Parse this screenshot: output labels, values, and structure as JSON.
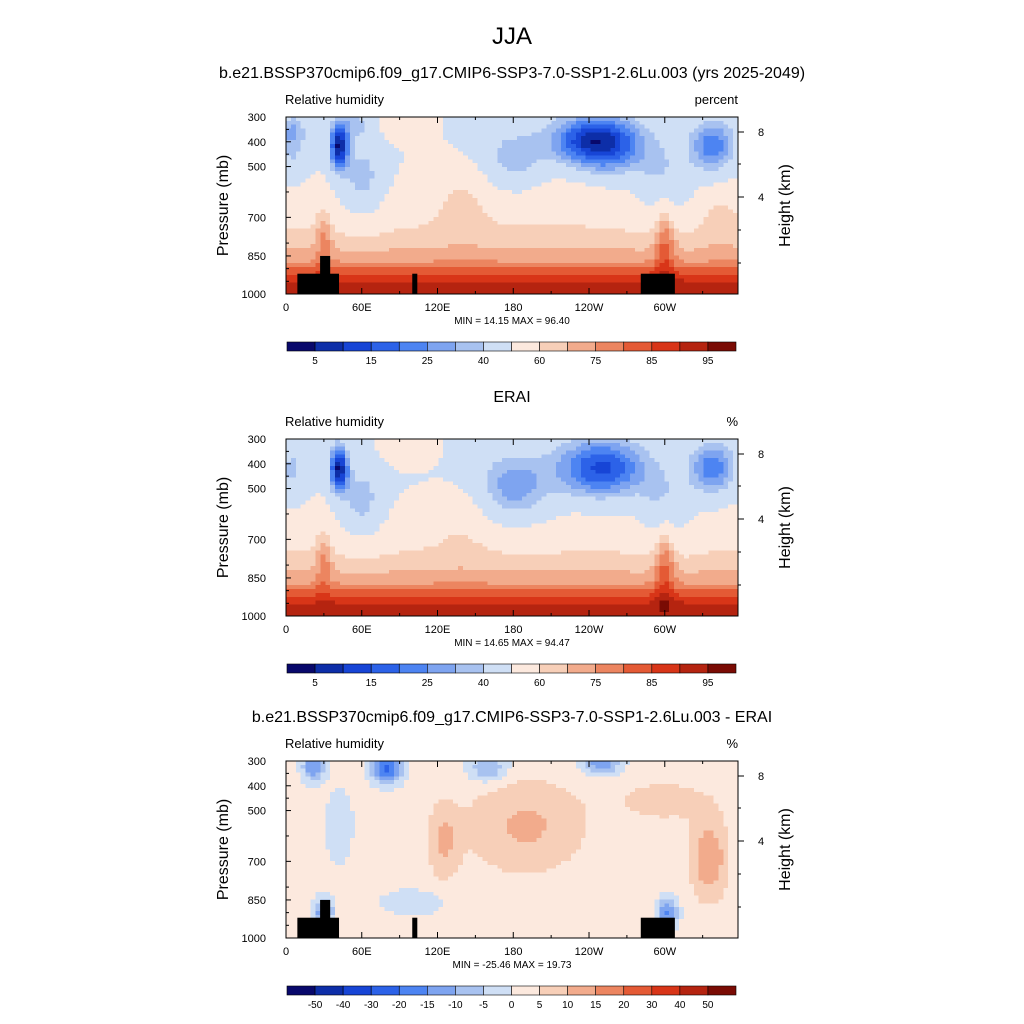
{
  "figure": {
    "title": "JJA"
  },
  "colors": {
    "abs_levels": [
      "#08086b",
      "#0d2ea8",
      "#1745d6",
      "#2c62e8",
      "#4d84f2",
      "#7ea4f0",
      "#a8c2f0",
      "#cfdff5",
      "#fce9de",
      "#f7cfb8",
      "#f2ab8c",
      "#ec8560",
      "#e45a35",
      "#d83518",
      "#b52410",
      "#7a0b04"
    ],
    "diff_levels": [
      "#08086b",
      "#0d2ea8",
      "#1745d6",
      "#2c62e8",
      "#4d84f2",
      "#7ea4f0",
      "#a8c2f0",
      "#cfdff5",
      "#fce9de",
      "#f7cfb8",
      "#f2ab8c",
      "#ec8560",
      "#e45a35",
      "#d83518",
      "#b52410",
      "#7a0b04"
    ],
    "topography": "#000000"
  },
  "chart_data": [
    {
      "type": "heatmap",
      "title": "b.e21.BSSP370cmip6.f09_g17.CMIP6-SSP3-7.0-SSP1-2.6Lu.003 (yrs 2025-2049)",
      "left_label": "Relative humidity",
      "right_label": "percent",
      "field": "model",
      "ylabel": "Pressure (mb)",
      "y2label": "Height (km)",
      "yticks": [
        "300",
        "400",
        "500",
        "700",
        "850",
        "1000"
      ],
      "y2ticks": [
        "8",
        "4"
      ],
      "xticks": [
        "0",
        "60E",
        "120E",
        "180",
        "120W",
        "60W"
      ],
      "xlim": [
        0,
        358
      ],
      "ylim": [
        1000,
        300
      ],
      "stats": "MIN =  14.15  MAX =  96.40",
      "colorbar_labels": [
        "5",
        "15",
        "25",
        "40",
        "60",
        "75",
        "85",
        "95"
      ],
      "levels": [
        5,
        10,
        15,
        20,
        25,
        30,
        35,
        40,
        50,
        60,
        65,
        70,
        75,
        80,
        85,
        90,
        95
      ],
      "value_range": [
        14.15,
        96.4
      ],
      "topography": true
    },
    {
      "type": "heatmap",
      "title": "ERAI",
      "left_label": "Relative humidity",
      "right_label": "%",
      "field": "obs",
      "ylabel": "Pressure (mb)",
      "y2label": "Height (km)",
      "yticks": [
        "300",
        "400",
        "500",
        "700",
        "850",
        "1000"
      ],
      "y2ticks": [
        "8",
        "4"
      ],
      "xticks": [
        "0",
        "60E",
        "120E",
        "180",
        "120W",
        "60W"
      ],
      "xlim": [
        0,
        358
      ],
      "ylim": [
        1000,
        300
      ],
      "stats": "MIN =  14.65  MAX =  94.47",
      "colorbar_labels": [
        "5",
        "15",
        "25",
        "40",
        "60",
        "75",
        "85",
        "95"
      ],
      "levels": [
        5,
        10,
        15,
        20,
        25,
        30,
        35,
        40,
        50,
        60,
        65,
        70,
        75,
        80,
        85,
        90,
        95
      ],
      "value_range": [
        14.65,
        94.47
      ],
      "topography": false
    },
    {
      "type": "heatmap",
      "title": "b.e21.BSSP370cmip6.f09_g17.CMIP6-SSP3-7.0-SSP1-2.6Lu.003 - ERAI",
      "left_label": "Relative humidity",
      "right_label": "%",
      "field": "diff",
      "ylabel": "Pressure (mb)",
      "y2label": "Height (km)",
      "yticks": [
        "300",
        "400",
        "500",
        "700",
        "850",
        "1000"
      ],
      "y2ticks": [
        "8",
        "4"
      ],
      "xticks": [
        "0",
        "60E",
        "120E",
        "180",
        "120W",
        "60W"
      ],
      "xlim": [
        0,
        358
      ],
      "ylim": [
        1000,
        300
      ],
      "stats": "MIN = -25.46  MAX =  19.73",
      "colorbar_labels": [
        "-50",
        "-40",
        "-30",
        "-20",
        "-15",
        "-10",
        "-5",
        "0",
        "5",
        "10",
        "15",
        "20",
        "30",
        "40",
        "50"
      ],
      "levels": [
        -60,
        -50,
        -40,
        -30,
        -20,
        -15,
        -10,
        -5,
        0,
        5,
        10,
        15,
        20,
        30,
        40,
        50,
        60
      ],
      "value_range": [
        -25.46,
        19.73
      ],
      "topography": true
    }
  ]
}
